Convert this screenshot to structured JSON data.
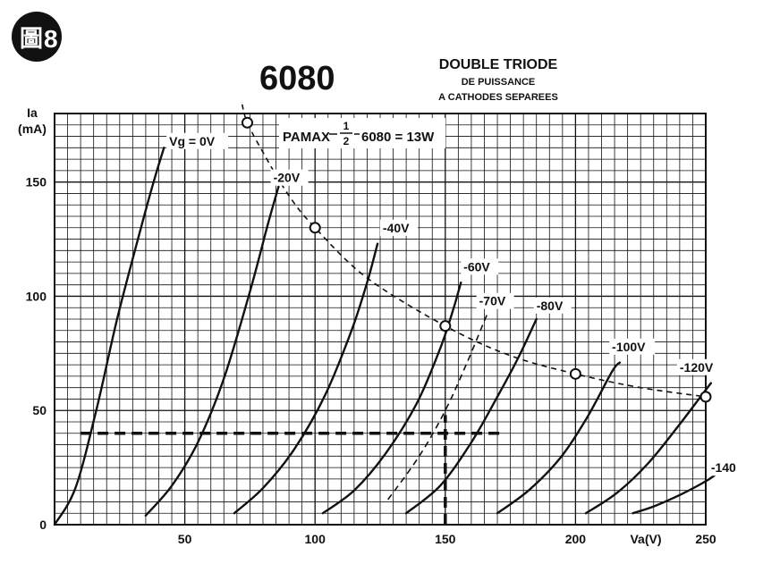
{
  "badge": {
    "glyph": "圖",
    "number": "8"
  },
  "title": "6080",
  "subtitle": [
    "DOUBLE TRIODE",
    "DE PUISSANCE",
    "A CATHODES SEPAREES"
  ],
  "pmax_label": {
    "prefix": "PAMAX",
    "num": "1",
    "den": "2",
    "suffix": "6080 = 13W"
  },
  "chart_data": {
    "type": "line",
    "xlabel": "Va(V)",
    "ylabel": [
      "Ia",
      "(mA)"
    ],
    "xlim": [
      0,
      250
    ],
    "ylim": [
      0,
      180
    ],
    "x_ticks": [
      50,
      100,
      150,
      200,
      250
    ],
    "y_ticks": [
      0,
      50,
      100,
      150
    ],
    "x_tick_labels": [
      "50",
      "100",
      "150",
      "200",
      "250"
    ],
    "y_tick_labels": [
      "0",
      "50",
      "100",
      "150"
    ],
    "grid": true,
    "grid_step_x": 5,
    "grid_step_y": 5,
    "series": [
      {
        "name": "Vg = 0V",
        "label_at": [
          44,
          166
        ],
        "points": [
          [
            0,
            0
          ],
          [
            8,
            16
          ],
          [
            16,
            50
          ],
          [
            24,
            90
          ],
          [
            32,
            125
          ],
          [
            38,
            150
          ],
          [
            42,
            165
          ]
        ]
      },
      {
        "name": "-20V",
        "label_at": [
          84,
          150
        ],
        "points": [
          [
            35,
            4
          ],
          [
            45,
            17
          ],
          [
            55,
            36
          ],
          [
            65,
            64
          ],
          [
            75,
            102
          ],
          [
            82,
            132
          ],
          [
            86,
            148
          ]
        ]
      },
      {
        "name": "-40V",
        "label_at": [
          126,
          128
        ],
        "points": [
          [
            69,
            5
          ],
          [
            80,
            16
          ],
          [
            92,
            33
          ],
          [
            104,
            57
          ],
          [
            114,
            85
          ],
          [
            120,
            106
          ],
          [
            124,
            123
          ]
        ]
      },
      {
        "name": "-60V",
        "label_at": [
          157,
          111
        ],
        "points": [
          [
            103,
            5
          ],
          [
            115,
            15
          ],
          [
            127,
            31
          ],
          [
            139,
            53
          ],
          [
            148,
            77
          ],
          [
            153,
            94
          ],
          [
            156,
            106
          ]
        ]
      },
      {
        "name": "-80V",
        "label_at": [
          185,
          94
        ],
        "points": [
          [
            135,
            5
          ],
          [
            148,
            17
          ],
          [
            160,
            36
          ],
          [
            170,
            56
          ],
          [
            178,
            73
          ],
          [
            185,
            90
          ]
        ]
      },
      {
        "name": "-100V",
        "label_at": [
          214,
          76
        ],
        "points": [
          [
            170,
            5
          ],
          [
            182,
            15
          ],
          [
            194,
            29
          ],
          [
            204,
            46
          ],
          [
            214,
            67
          ],
          [
            217,
            71
          ]
        ]
      },
      {
        "name": "-120V",
        "label_at": [
          240,
          67
        ],
        "points": [
          [
            204,
            5
          ],
          [
            216,
            14
          ],
          [
            228,
            27
          ],
          [
            240,
            44
          ],
          [
            248,
            56
          ],
          [
            252,
            62
          ]
        ]
      },
      {
        "name": "-140",
        "label_at": [
          252,
          23
        ],
        "points": [
          [
            222,
            5
          ],
          [
            230,
            8
          ],
          [
            240,
            13
          ],
          [
            250,
            19
          ],
          [
            255,
            23
          ]
        ]
      }
    ],
    "dashed_series": [
      {
        "name": "-70V",
        "label_at": [
          163,
          96
        ],
        "points": [
          [
            128,
            11
          ],
          [
            140,
            30
          ],
          [
            150,
            50
          ],
          [
            158,
            70
          ],
          [
            166,
            92
          ]
        ]
      }
    ],
    "pmax_curve": {
      "label": "PAMAX 1/2 6080 = 13W",
      "points": [
        [
          72,
          184
        ],
        [
          74,
          176
        ],
        [
          80,
          163
        ],
        [
          90,
          144
        ],
        [
          100,
          130
        ],
        [
          120,
          108
        ],
        [
          150,
          87
        ],
        [
          175,
          74
        ],
        [
          200,
          66
        ],
        [
          225,
          60
        ],
        [
          250,
          56
        ]
      ],
      "markers": [
        [
          74,
          176
        ],
        [
          100,
          130
        ],
        [
          150,
          87
        ],
        [
          200,
          66
        ],
        [
          250,
          56
        ]
      ]
    },
    "load_lines": [
      {
        "style": "heavy-dashed-horizontal",
        "points": [
          [
            10,
            40
          ],
          [
            172,
            40
          ]
        ]
      },
      {
        "style": "heavy-dashed-vertical",
        "points": [
          [
            150,
            0
          ],
          [
            150,
            48
          ]
        ]
      }
    ]
  }
}
